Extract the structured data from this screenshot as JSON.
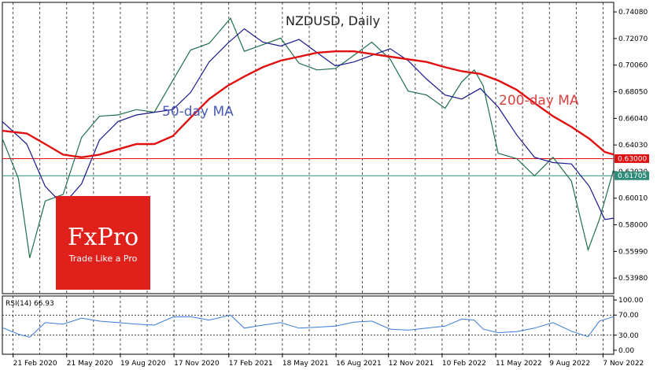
{
  "chart_data": {
    "type": "candlestick",
    "title": "NZDUSD, Daily",
    "instrument": "NZDUSD",
    "timeframe": "Daily",
    "ylim": [
      0.528,
      0.748
    ],
    "y_ticks": [
      "0.74080",
      "0.72070",
      "0.70060",
      "0.68050",
      "0.66040",
      "0.64030",
      "0.62020",
      "0.60010",
      "0.58000",
      "0.55990",
      "0.53980"
    ],
    "x_tick_labels": [
      "21 Feb 2020",
      "21 May 2020",
      "19 Aug 2020",
      "17 Nov 2020",
      "17 Feb 2021",
      "18 May 2021",
      "16 Aug 2021",
      "12 Nov 2021",
      "10 Feb 2022",
      "11 May 2022",
      "9 Aug 2022",
      "7 Nov 2022"
    ],
    "x_range": [
      "2020-02-03",
      "2022-11-25"
    ],
    "grid": "vertical dashed",
    "price_series_monthly": {
      "dates": [
        "2020-02-03",
        "2020-03-01",
        "2020-03-20",
        "2020-04-15",
        "2020-05-15",
        "2020-06-15",
        "2020-07-15",
        "2020-08-15",
        "2020-09-15",
        "2020-10-15",
        "2020-11-15",
        "2020-12-15",
        "2021-01-15",
        "2021-02-20",
        "2021-03-15",
        "2021-04-15",
        "2021-05-15",
        "2021-06-15",
        "2021-07-15",
        "2021-08-15",
        "2021-09-15",
        "2021-10-15",
        "2021-11-15",
        "2021-12-15",
        "2022-01-15",
        "2022-02-15",
        "2022-03-15",
        "2022-04-05",
        "2022-04-20",
        "2022-05-15",
        "2022-06-15",
        "2022-07-15",
        "2022-08-15",
        "2022-09-15",
        "2022-10-13",
        "2022-11-01",
        "2022-11-25"
      ],
      "values": [
        0.645,
        0.615,
        0.555,
        0.598,
        0.603,
        0.646,
        0.662,
        0.663,
        0.667,
        0.665,
        0.689,
        0.712,
        0.717,
        0.736,
        0.711,
        0.716,
        0.721,
        0.702,
        0.697,
        0.698,
        0.708,
        0.718,
        0.705,
        0.681,
        0.678,
        0.668,
        0.688,
        0.697,
        0.685,
        0.634,
        0.63,
        0.617,
        0.631,
        0.613,
        0.561,
        0.584,
        0.622
      ]
    },
    "ma50": {
      "name": "50-day MA",
      "label": "50-day MA",
      "color": "#1a1a8c",
      "dates": [
        "2020-02-03",
        "2020-03-15",
        "2020-04-15",
        "2020-05-15",
        "2020-06-15",
        "2020-07-15",
        "2020-08-15",
        "2020-09-15",
        "2020-10-15",
        "2020-11-15",
        "2020-12-15",
        "2021-01-15",
        "2021-02-15",
        "2021-03-15",
        "2021-04-15",
        "2021-05-15",
        "2021-06-15",
        "2021-07-15",
        "2021-08-15",
        "2021-09-15",
        "2021-10-15",
        "2021-11-15",
        "2021-12-15",
        "2022-01-15",
        "2022-02-15",
        "2022-03-15",
        "2022-04-15",
        "2022-05-15",
        "2022-06-15",
        "2022-07-15",
        "2022-08-15",
        "2022-09-15",
        "2022-10-15",
        "2022-11-10",
        "2022-11-25"
      ],
      "values": [
        0.658,
        0.641,
        0.609,
        0.595,
        0.611,
        0.644,
        0.658,
        0.663,
        0.665,
        0.667,
        0.68,
        0.703,
        0.717,
        0.728,
        0.718,
        0.715,
        0.72,
        0.71,
        0.7,
        0.703,
        0.708,
        0.713,
        0.704,
        0.69,
        0.678,
        0.675,
        0.683,
        0.669,
        0.648,
        0.631,
        0.627,
        0.626,
        0.609,
        0.584,
        0.585
      ]
    },
    "ma200": {
      "name": "200-day MA",
      "label": "200-day MA",
      "color": "#e01010",
      "dates": [
        "2020-02-03",
        "2020-03-15",
        "2020-04-15",
        "2020-05-15",
        "2020-06-15",
        "2020-07-15",
        "2020-08-15",
        "2020-09-15",
        "2020-10-15",
        "2020-11-15",
        "2020-12-15",
        "2021-01-15",
        "2021-02-15",
        "2021-03-15",
        "2021-04-15",
        "2021-05-15",
        "2021-06-15",
        "2021-07-15",
        "2021-08-15",
        "2021-09-15",
        "2021-10-15",
        "2021-11-15",
        "2021-12-15",
        "2022-01-15",
        "2022-02-15",
        "2022-03-15",
        "2022-04-15",
        "2022-05-15",
        "2022-06-15",
        "2022-07-15",
        "2022-08-15",
        "2022-09-15",
        "2022-10-15",
        "2022-11-10",
        "2022-11-25"
      ],
      "values": [
        0.651,
        0.649,
        0.641,
        0.633,
        0.631,
        0.633,
        0.637,
        0.641,
        0.641,
        0.647,
        0.661,
        0.675,
        0.685,
        0.692,
        0.699,
        0.704,
        0.707,
        0.71,
        0.711,
        0.711,
        0.709,
        0.707,
        0.705,
        0.703,
        0.699,
        0.696,
        0.694,
        0.689,
        0.682,
        0.672,
        0.662,
        0.654,
        0.645,
        0.635,
        0.633
      ]
    },
    "horizontal_levels": [
      {
        "value": 0.63,
        "label": "0.63000",
        "color": "#e01010"
      },
      {
        "value": 0.61705,
        "label": "0.61705",
        "color": "#2e8b7a"
      }
    ],
    "rsi": {
      "label": "RSI(14) 66.93",
      "period": 14,
      "last_value": 66.93,
      "ylim": [
        0,
        100
      ],
      "y_ticks": [
        "100.00",
        "70.00",
        "30.00",
        "0.00"
      ],
      "levels": [
        70,
        30
      ],
      "color": "#3a7bd5",
      "dates": [
        "2020-02-03",
        "2020-03-01",
        "2020-03-20",
        "2020-04-15",
        "2020-05-15",
        "2020-06-15",
        "2020-07-15",
        "2020-08-15",
        "2020-09-15",
        "2020-10-15",
        "2020-11-15",
        "2020-12-15",
        "2021-01-15",
        "2021-02-20",
        "2021-03-15",
        "2021-04-15",
        "2021-05-15",
        "2021-06-15",
        "2021-07-15",
        "2021-08-15",
        "2021-09-15",
        "2021-10-15",
        "2021-11-15",
        "2021-12-15",
        "2022-01-15",
        "2022-02-15",
        "2022-03-15",
        "2022-04-05",
        "2022-04-20",
        "2022-05-15",
        "2022-06-15",
        "2022-07-15",
        "2022-08-15",
        "2022-09-15",
        "2022-10-13",
        "2022-11-01",
        "2022-11-25"
      ],
      "values": [
        45,
        32,
        26,
        55,
        52,
        64,
        58,
        55,
        52,
        50,
        66,
        67,
        60,
        70,
        44,
        50,
        55,
        44,
        46,
        48,
        56,
        58,
        42,
        40,
        44,
        48,
        62,
        60,
        42,
        35,
        37,
        44,
        55,
        38,
        27,
        58,
        67
      ]
    }
  },
  "branding": {
    "logo_text": "FxPro",
    "tagline": "Trade Like a Pro",
    "color": "#e0201b"
  }
}
